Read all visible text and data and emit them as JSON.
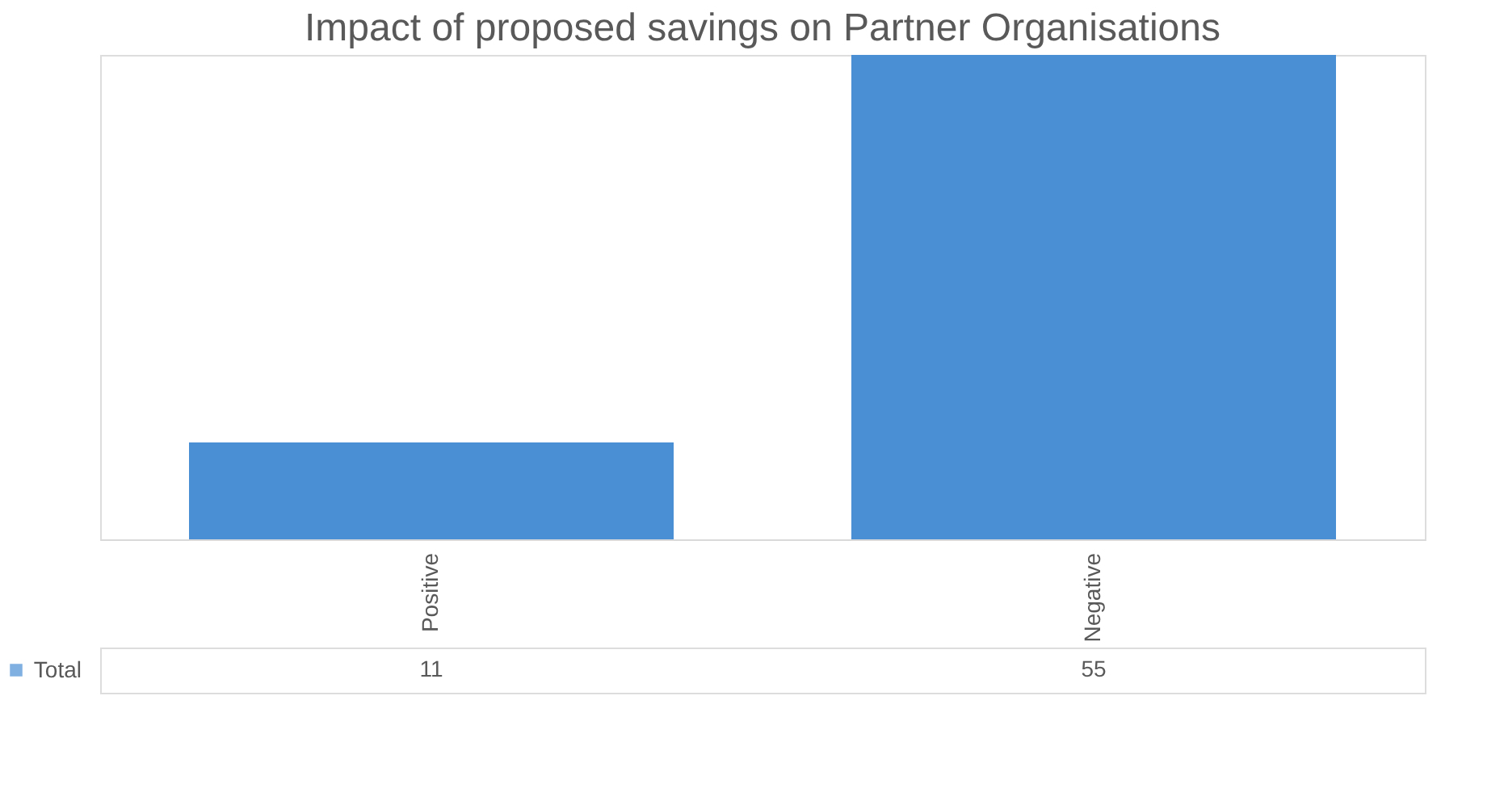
{
  "chart_data": {
    "type": "bar",
    "title": "Impact of proposed savings on Partner Organisations",
    "categories": [
      "Positive",
      "Negative"
    ],
    "series": [
      {
        "name": "Total",
        "color": "#4a8fd4",
        "values": [
          11,
          55
        ]
      }
    ],
    "data_labels": true
  }
}
